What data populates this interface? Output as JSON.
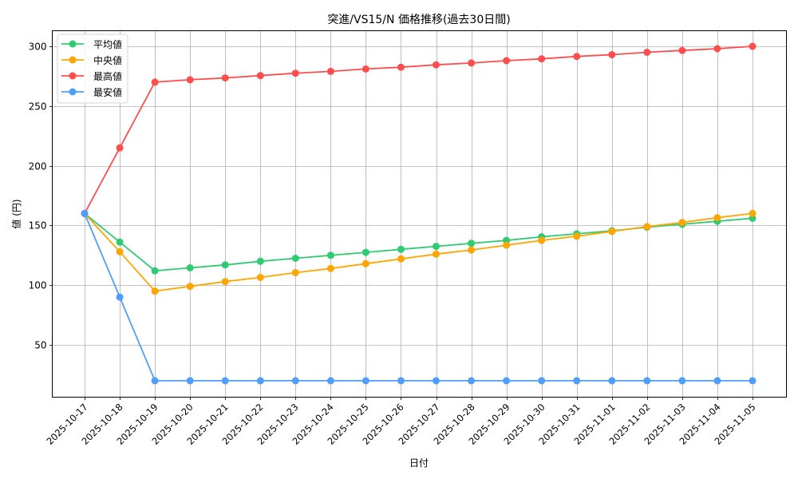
{
  "chart_data": {
    "type": "line",
    "title": "突進/VS15/N 価格推移(過去30日間)",
    "xlabel": "日付",
    "ylabel": "値 (円)",
    "ylim": [
      5,
      314
    ],
    "yticks": [
      50,
      100,
      150,
      200,
      250,
      300
    ],
    "grid": true,
    "legend_position": "upper left",
    "categories": [
      "2025-10-17",
      "2025-10-18",
      "2025-10-19",
      "2025-10-20",
      "2025-10-21",
      "2025-10-22",
      "2025-10-23",
      "2025-10-24",
      "2025-10-25",
      "2025-10-26",
      "2025-10-27",
      "2025-10-28",
      "2025-10-29",
      "2025-10-30",
      "2025-10-31",
      "2025-11-01",
      "2025-11-02",
      "2025-11-03",
      "2025-11-04",
      "2025-11-05"
    ],
    "series": [
      {
        "name": "平均値",
        "color": "#2ecc71",
        "values": [
          160,
          136,
          112,
          114.5,
          117,
          120,
          122.5,
          125,
          127.5,
          130,
          132.5,
          135,
          137.5,
          140.5,
          143,
          145.5,
          148.5,
          151,
          153.5,
          156
        ]
      },
      {
        "name": "中央値",
        "color": "#ffa500",
        "values": [
          160,
          128,
          95,
          99,
          103,
          106.5,
          110.5,
          114,
          118,
          122,
          126,
          129.5,
          133.5,
          137.5,
          141,
          145,
          149,
          152.5,
          156.5,
          160
        ]
      },
      {
        "name": "最高値",
        "color": "#ff4d4d",
        "values": [
          160,
          215,
          270,
          272,
          273.5,
          275.5,
          277.5,
          279,
          281,
          282.5,
          284.5,
          286,
          288,
          289.5,
          291.5,
          293,
          295,
          296.5,
          298,
          300
        ]
      },
      {
        "name": "最安値",
        "color": "#4d9eff",
        "values": [
          160,
          90,
          20,
          20,
          20,
          20,
          20,
          20,
          20,
          20,
          20,
          20,
          20,
          20,
          20,
          20,
          20,
          20,
          20,
          20
        ]
      }
    ]
  }
}
